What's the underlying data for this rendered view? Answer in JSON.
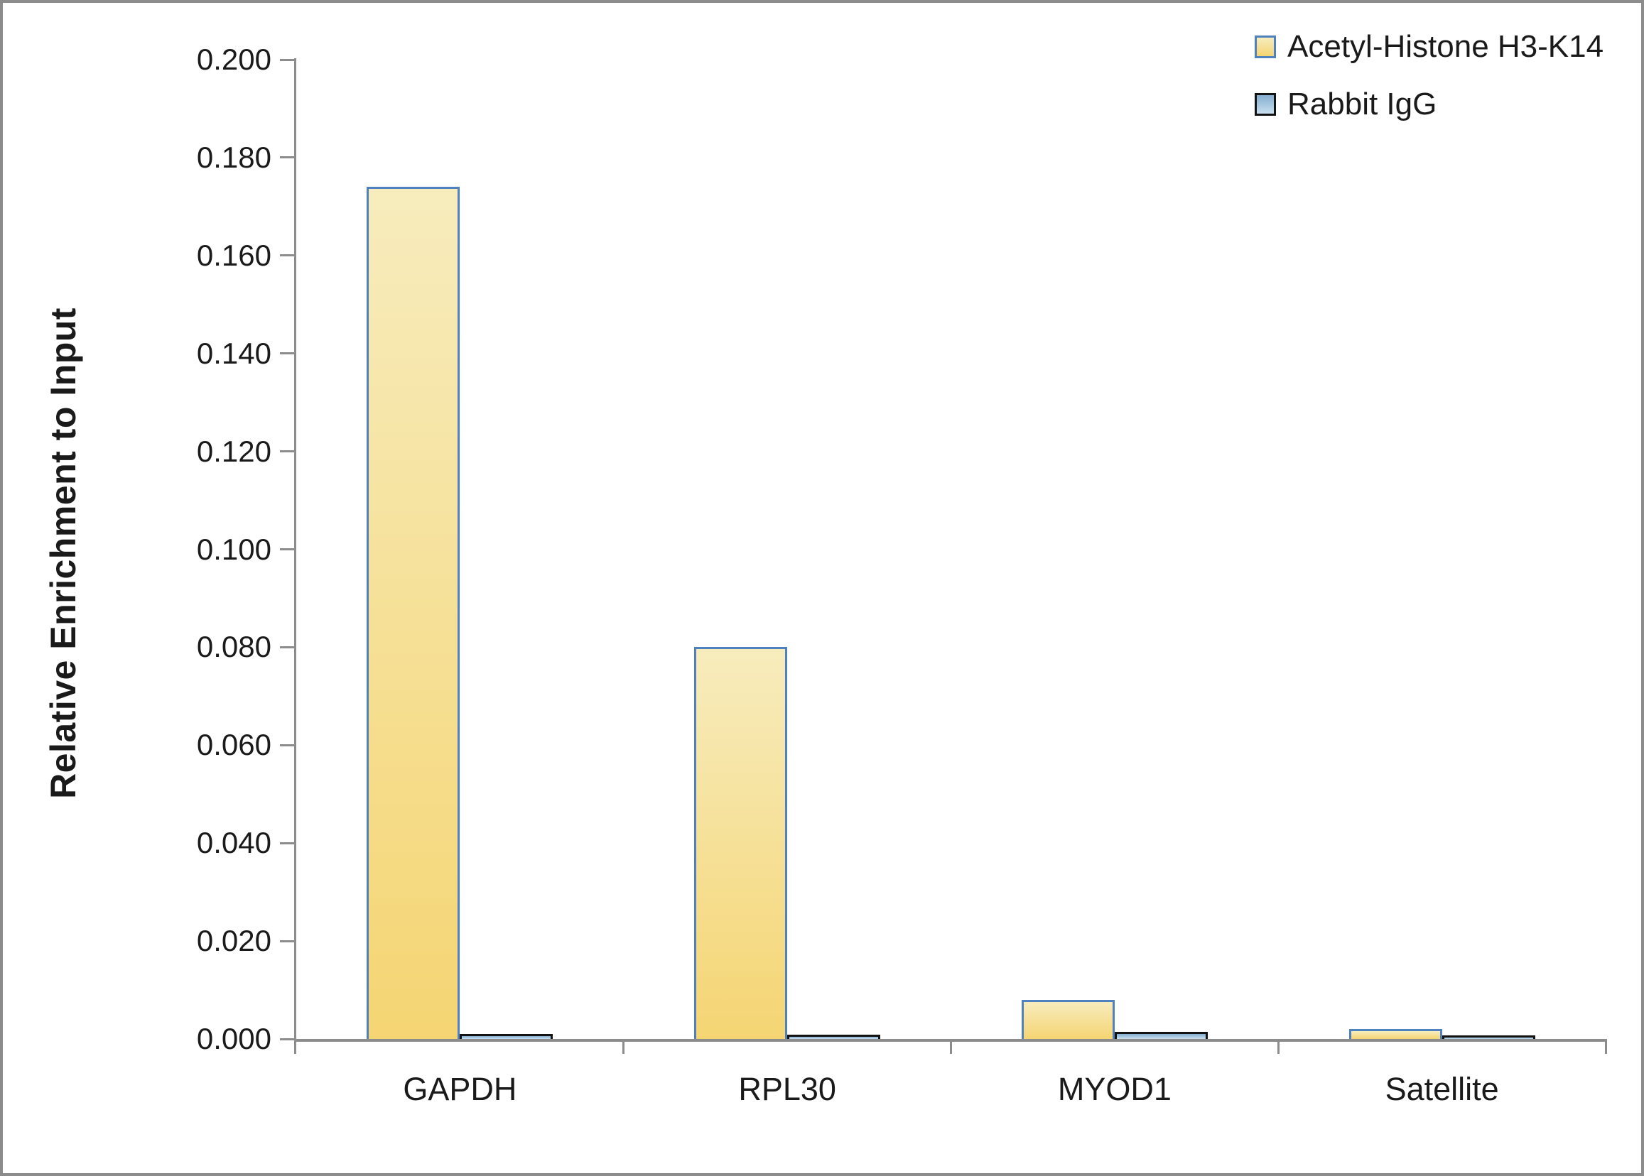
{
  "figure": {
    "background": "#ffffff",
    "frame_color": "#8c8c8c",
    "axis_color": "#8c8c8c",
    "text_color": "#1a1a1a"
  },
  "chart_data": {
    "type": "bar",
    "title": "",
    "xlabel": "",
    "ylabel": "Relative Enrichment to Input",
    "categories": [
      "GAPDH",
      "RPL30",
      "MYOD1",
      "Satellite"
    ],
    "series": [
      {
        "name": "Acetyl-Histone H3-K14",
        "values": [
          0.174,
          0.08,
          0.008,
          0.002
        ],
        "fill_top": "#f7ecbd",
        "fill_bottom": "#f5d573",
        "border": "#4e81bd"
      },
      {
        "name": "Rabbit IgG",
        "values": [
          0.001,
          0.0008,
          0.0015,
          0.0007
        ],
        "fill_top": "#84aed0",
        "fill_bottom": "#c8dfef",
        "border": "#131313"
      }
    ],
    "ylim": [
      0.0,
      0.2
    ],
    "ytick_step": 0.02,
    "ytick_decimals": 3,
    "grid": false,
    "legend_position": "top-right",
    "legend_entries": [
      "Acetyl-Histone H3-K14",
      "Rabbit IgG"
    ]
  }
}
